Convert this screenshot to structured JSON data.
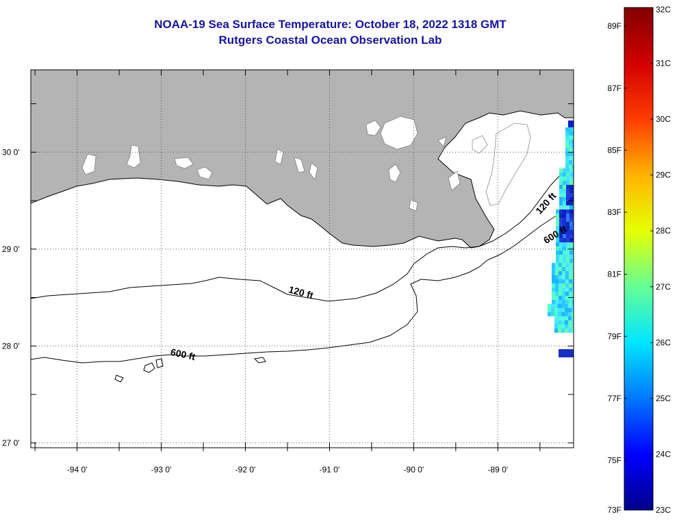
{
  "title": {
    "line1": "NOAA-19 Sea Surface Temperature:  October 18, 2022 1318 GMT",
    "line2": "Rutgers Coastal Ocean Observation Lab"
  },
  "map": {
    "lon_range": [
      -94.55,
      -88.1
    ],
    "lat_range": [
      26.95,
      30.85
    ],
    "lon_labels": [
      {
        "lon": -94,
        "text": "-94 0'"
      },
      {
        "lon": -93,
        "text": "-93 0'"
      },
      {
        "lon": -92,
        "text": "-92 0'"
      },
      {
        "lon": -91,
        "text": "-91 0'"
      },
      {
        "lon": -90,
        "text": "-90 0'"
      },
      {
        "lon": -89,
        "text": "-89 0'"
      }
    ],
    "lat_labels": [
      {
        "lat": 30,
        "text": "30 0'"
      },
      {
        "lat": 29,
        "text": "29 0'"
      },
      {
        "lat": 28,
        "text": "28 0'"
      },
      {
        "lat": 27,
        "text": "27 0'"
      }
    ],
    "colors": {
      "land": "#b4b4b4",
      "lakes": "#ffffff",
      "water": "#ffffff",
      "grid": "#555555",
      "contour": "#000000"
    },
    "grid": "dotted",
    "contour_labels": [
      {
        "text": "120 ft",
        "lon": -91.35,
        "lat": 28.52,
        "rotate": 15
      },
      {
        "text": "600 ft",
        "lon": -92.75,
        "lat": 27.88,
        "rotate": 12
      },
      {
        "text": "120 ft",
        "lon": -88.4,
        "lat": 29.45,
        "rotate": -48
      },
      {
        "text": "600 ft",
        "lon": -88.3,
        "lat": 29.12,
        "rotate": -32
      }
    ]
  },
  "colorbar": {
    "fahrenheit_labels": [
      "89F",
      "87F",
      "85F",
      "83F",
      "81F",
      "79F",
      "77F",
      "75F",
      "73F"
    ],
    "celsius_labels": [
      "32C",
      "31C",
      "30C",
      "29C",
      "28C",
      "27C",
      "26C",
      "25C",
      "24C",
      "23C"
    ],
    "range_c": [
      23,
      32
    ],
    "stops": [
      "#00008c",
      "#0000ff",
      "#0078ff",
      "#00e6ff",
      "#64ff96",
      "#e6ff00",
      "#ffb400",
      "#ff3c00",
      "#d20000",
      "#820000"
    ]
  }
}
